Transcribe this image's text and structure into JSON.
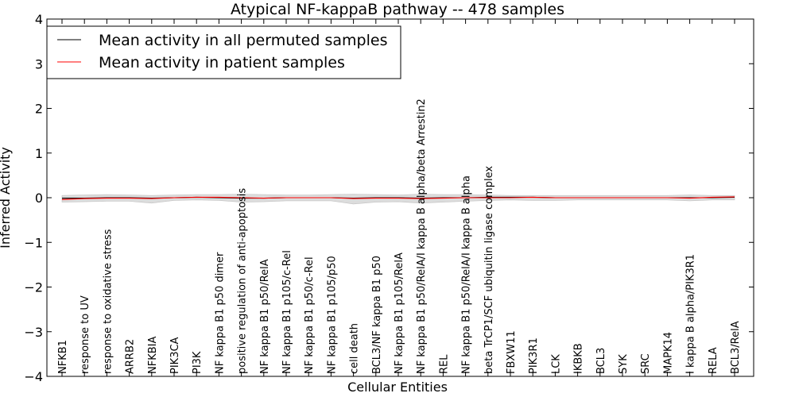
{
  "chart_data": {
    "type": "line",
    "title": "Atypical NF-kappaB pathway -- 478 samples",
    "xlabel": "Cellular Entities",
    "ylabel": "Inferred Activity",
    "ylim": [
      -4,
      4
    ],
    "yticks": [
      "−4",
      "−3",
      "−2",
      "−1",
      "0",
      "1",
      "2",
      "3",
      "4"
    ],
    "legend_position": "top-left",
    "grid": false,
    "categories": [
      "NFKB1",
      "response to UV",
      "response to oxidative stress",
      "ARRB2",
      "NFKBIA",
      "PIK3CA",
      "PI3K",
      "NF kappa B1 p50 dimer",
      "positive regulation of anti-apoptosis",
      "NF kappa B1 p50/RelA",
      "NF kappa B1 p105/c-Rel",
      "NF kappa B1 p50/c-Rel",
      "NF kappa B1 p105/p50",
      "cell death",
      "BCL3/NF kappa B1 p50",
      "NF kappa B1 p105/RelA",
      "NF kappa B1 p50/RelA/I kappa B alpha/beta Arrestin2",
      "REL",
      "NF kappa B1 p50/RelA/I kappa B alpha",
      "beta TrCP1/SCF ubiquitin ligase complex",
      "FBXW11",
      "PIK3R1",
      "LCK",
      "IKBKB",
      "BCL3",
      "SYK",
      "SRC",
      "MAPK14",
      "I kappa B alpha/PIK3R1",
      "RELA",
      "BCL3/RelA"
    ],
    "series": [
      {
        "name": "Mean activity in all permuted samples",
        "color": "#000000",
        "values": [
          -0.01,
          -0.01,
          0.0,
          0.0,
          -0.01,
          0.0,
          0.01,
          0.0,
          -0.01,
          -0.01,
          0.0,
          0.0,
          0.0,
          -0.01,
          0.0,
          0.0,
          -0.01,
          0.0,
          0.0,
          0.01,
          0.01,
          0.01,
          0.0,
          0.0,
          0.0,
          0.0,
          0.0,
          0.0,
          0.0,
          0.0,
          0.01
        ]
      },
      {
        "name": "Mean activity in patient samples",
        "color": "#ff0000",
        "values": [
          -0.04,
          -0.02,
          -0.01,
          -0.01,
          -0.02,
          0.0,
          0.01,
          0.01,
          0.0,
          -0.01,
          0.0,
          0.0,
          0.0,
          -0.02,
          -0.01,
          -0.01,
          -0.02,
          -0.01,
          0.0,
          0.0,
          0.0,
          0.01,
          0.0,
          0.0,
          0.0,
          0.0,
          0.0,
          0.0,
          -0.01,
          0.01,
          0.02
        ]
      }
    ],
    "band": {
      "color": "#d9d9d9",
      "upper": [
        0.05,
        0.06,
        0.07,
        0.06,
        0.05,
        0.06,
        0.07,
        0.07,
        0.08,
        0.07,
        0.06,
        0.06,
        0.07,
        0.08,
        0.07,
        0.06,
        0.08,
        0.07,
        0.07,
        0.06,
        0.05,
        0.05,
        0.05,
        0.05,
        0.05,
        0.05,
        0.05,
        0.05,
        0.06,
        0.05,
        0.05
      ],
      "lower": [
        -0.1,
        -0.09,
        -0.08,
        -0.08,
        -0.12,
        -0.06,
        -0.05,
        -0.06,
        -0.1,
        -0.09,
        -0.07,
        -0.07,
        -0.07,
        -0.14,
        -0.1,
        -0.09,
        -0.12,
        -0.1,
        -0.08,
        -0.06,
        -0.05,
        -0.06,
        -0.06,
        -0.05,
        -0.05,
        -0.05,
        -0.05,
        -0.05,
        -0.07,
        -0.05,
        -0.05
      ]
    }
  }
}
